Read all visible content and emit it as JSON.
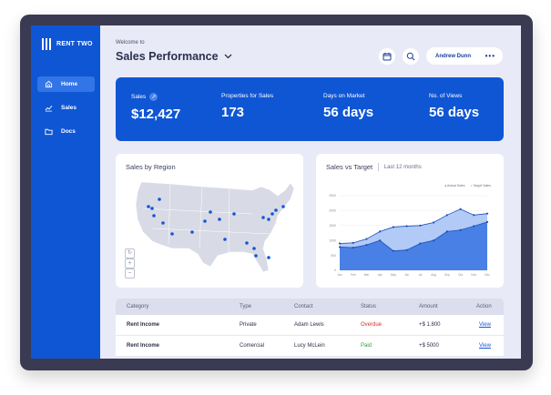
{
  "brand": {
    "name": "RENT TWO"
  },
  "sidebar": {
    "items": [
      {
        "label": "Home",
        "icon": "home-icon",
        "active": true
      },
      {
        "label": "Sales",
        "icon": "chart-line-icon",
        "active": false
      },
      {
        "label": "Docs",
        "icon": "folder-icon",
        "active": false
      }
    ]
  },
  "header": {
    "welcome": "Welcome to",
    "title": "Sales Performance",
    "user": "Andrew Dunn",
    "icons": [
      "calendar-icon",
      "search-icon",
      "more-dots-icon"
    ]
  },
  "kpis": [
    {
      "label": "Sales",
      "value": "$12,427"
    },
    {
      "label": "Properties for Sales",
      "value": "173"
    },
    {
      "label": "Days on Market",
      "value": "56 days"
    },
    {
      "label": "No. of Views",
      "value": "56 days"
    }
  ],
  "map_card": {
    "title": "Sales by Region",
    "controls": [
      "refresh-icon",
      "plus-icon",
      "minus-icon"
    ]
  },
  "chart_card": {
    "title": "Sales vs Target",
    "subtitle": "Last 12 months"
  },
  "chart_data": {
    "type": "area",
    "title": "Sales vs Target",
    "subtitle": "Last 12 months",
    "legend": [
      "Actual Sales",
      "Target Sales"
    ],
    "legend_position": "top-right",
    "ylim": [
      0,
      2500
    ],
    "yticks": [
      "0",
      "500",
      "1000",
      "1500",
      "2000",
      "2500"
    ],
    "categories": [
      "Jan",
      "Feb",
      "Mar",
      "Apr",
      "May",
      "Jun",
      "Jul",
      "Aug",
      "Sep",
      "Oct",
      "Nov",
      "Dec"
    ],
    "series": [
      {
        "name": "Target Sales",
        "values": [
          900,
          920,
          1050,
          1300,
          1450,
          1480,
          1500,
          1600,
          1850,
          2050,
          1850,
          1900
        ],
        "color": "#aac4f5"
      },
      {
        "name": "Actual Sales",
        "values": [
          780,
          760,
          850,
          1000,
          650,
          680,
          900,
          1000,
          1300,
          1350,
          1480,
          1620
        ],
        "color": "#3d78e3"
      }
    ],
    "grid": true
  },
  "table": {
    "columns": [
      "Category",
      "Type",
      "Contact",
      "Status",
      "Amount",
      "Action"
    ],
    "rows": [
      {
        "category": "Rent Income",
        "type": "Private",
        "contact": "Adam Lewis",
        "status": "Overdue",
        "status_color": "#d92d20",
        "amount": "+$ 1.800",
        "action": "View"
      },
      {
        "category": "Rent Income",
        "type": "Comercial",
        "contact": "Lucy McLein",
        "status": "Paid",
        "status_color": "#2e9e3a",
        "amount": "+$ 5000",
        "action": "View"
      }
    ]
  },
  "colors": {
    "accent": "#0f56d4",
    "background": "#e9eaf7",
    "frame": "#3a3a52"
  }
}
